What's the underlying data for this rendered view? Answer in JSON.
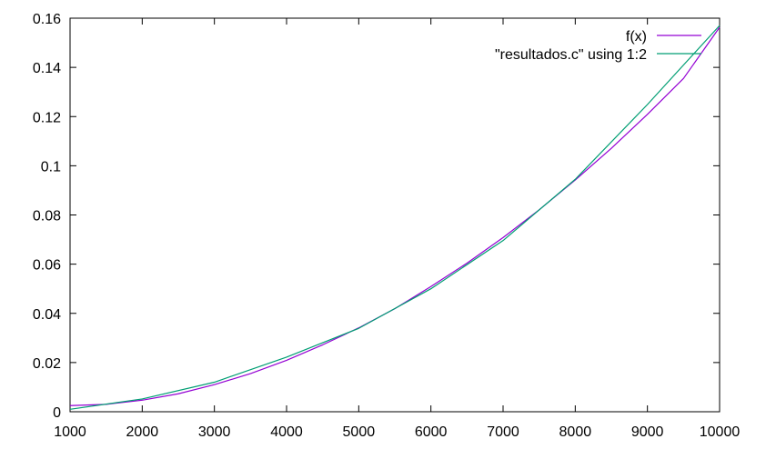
{
  "chart_data": {
    "type": "line",
    "title": "",
    "xlabel": "",
    "ylabel": "",
    "xlim": [
      1000,
      10000
    ],
    "ylim": [
      0,
      0.16
    ],
    "xticks": [
      1000,
      2000,
      3000,
      4000,
      5000,
      6000,
      7000,
      8000,
      9000,
      10000
    ],
    "xtick_labels": [
      "1000",
      "2000",
      "3000",
      "4000",
      "5000",
      "6000",
      "7000",
      "8000",
      "9000",
      "10000"
    ],
    "yticks": [
      0,
      0.02,
      0.04,
      0.06,
      0.08,
      0.1,
      0.12,
      0.14,
      0.16
    ],
    "ytick_labels": [
      "0",
      "0.02",
      "0.04",
      "0.06",
      "0.08",
      "0.1",
      "0.12",
      "0.14",
      "0.16"
    ],
    "grid": false,
    "legend_position": "top-right",
    "series": [
      {
        "name": "f(x)",
        "color": "#9400d3",
        "x": [
          1000,
          1500,
          2000,
          2500,
          3000,
          3500,
          4000,
          4500,
          5000,
          5500,
          6000,
          6500,
          7000,
          7500,
          8000,
          8500,
          9000,
          9500,
          10000
        ],
        "y": [
          0.0025,
          0.003,
          0.0047,
          0.0073,
          0.011,
          0.0155,
          0.0209,
          0.0272,
          0.0341,
          0.0419,
          0.0509,
          0.0604,
          0.0708,
          0.0821,
          0.0942,
          0.1071,
          0.1209,
          0.1355,
          0.1563
        ]
      },
      {
        "name": "\"resultados.c\" using 1:2",
        "color": "#009e73",
        "x": [
          1000,
          2000,
          3000,
          4000,
          5000,
          6000,
          7000,
          8000,
          9000,
          10000
        ],
        "y": [
          0.001,
          0.0052,
          0.012,
          0.0222,
          0.0339,
          0.05,
          0.0696,
          0.0945,
          0.1249,
          0.157
        ]
      }
    ]
  }
}
